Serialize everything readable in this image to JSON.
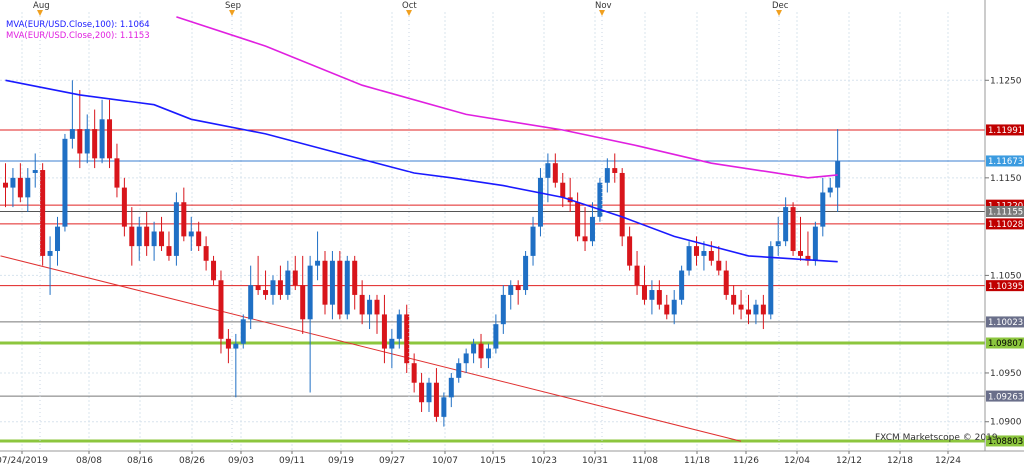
{
  "chart_data": {
    "type": "candlestick",
    "instrument": "EUR/USD",
    "legend": [
      {
        "label": "MVA(EUR/USD.Close,100): 1.1064",
        "color": "#1a1aff"
      },
      {
        "label": "MVA(EUR/USD.Close,200): 1.1153",
        "color": "#e020e0"
      }
    ],
    "credit": "FXCM Marketscope © 2019",
    "ylim": [
      1.087,
      1.132
    ],
    "y_ticks": [
      1.09,
      1.095,
      1.105,
      1.115,
      1.125
    ],
    "x_tick_labels": [
      "07/24/2019",
      "08/08",
      "08/16",
      "08/26",
      "09/03",
      "09/11",
      "09/19",
      "09/27",
      "10/07",
      "10/15",
      "10/23",
      "10/31",
      "11/08",
      "11/18",
      "11/26",
      "12/04",
      "12/12",
      "12/18",
      "12/24"
    ],
    "month_markers": [
      "Aug",
      "Sep",
      "Oct",
      "Nov",
      "Dec"
    ],
    "horizontal_levels": [
      {
        "label": "1.11991",
        "value": 1.11991,
        "color": "#e02020",
        "box": "#c00000",
        "text_color": "#ffffff"
      },
      {
        "label": "1.11673",
        "value": 1.11673,
        "color": "#3b7fd0",
        "box": "#3b9be0",
        "text_color": "#ffffff"
      },
      {
        "label": "1.11220",
        "value": 1.1122,
        "color": "#e02020",
        "box": "#c00000",
        "text_color": "#ffffff"
      },
      {
        "label": "1.11155",
        "value": 1.11155,
        "color": "#555555",
        "box": "#7a7a7a",
        "text_color": "#ffffff"
      },
      {
        "label": "1.11028",
        "value": 1.11028,
        "color": "#e02020",
        "box": "#c00000",
        "text_color": "#ffffff"
      },
      {
        "label": "1.10395",
        "value": 1.10395,
        "color": "#e02020",
        "box": "#c00000",
        "text_color": "#ffffff"
      },
      {
        "label": "1.10023",
        "value": 1.10023,
        "color": "#777777",
        "box": "#6a6f8a",
        "text_color": "#ffffff"
      },
      {
        "label": "1.09807",
        "value": 1.09807,
        "color": "#8cc63e",
        "box": "#8cc63e",
        "text_color": "#000000"
      },
      {
        "label": "1.09263",
        "value": 1.09263,
        "color": "#777777",
        "box": "#6a6f8a",
        "text_color": "#ffffff"
      },
      {
        "label": "1.08803",
        "value": 1.08803,
        "color": "#8cc63e",
        "box": "#8cc63e",
        "text_color": "#000000"
      }
    ],
    "trendline": {
      "from": [
        0,
        1.107
      ],
      "to": [
        99,
        1.088
      ],
      "color": "#e03030"
    },
    "ma100": [
      [
        0,
        1.125
      ],
      [
        10,
        1.1235
      ],
      [
        20,
        1.1225
      ],
      [
        25,
        1.121
      ],
      [
        35,
        1.1195
      ],
      [
        45,
        1.1175
      ],
      [
        55,
        1.1155
      ],
      [
        60,
        1.115
      ],
      [
        67,
        1.1142
      ],
      [
        75,
        1.113
      ],
      [
        83,
        1.111
      ],
      [
        90,
        1.109
      ],
      [
        100,
        1.107
      ],
      [
        108,
        1.1066
      ],
      [
        112,
        1.1064
      ]
    ],
    "ma200": [
      [
        23,
        1.1315
      ],
      [
        35,
        1.1285
      ],
      [
        48,
        1.1245
      ],
      [
        62,
        1.1215
      ],
      [
        75,
        1.1199
      ],
      [
        85,
        1.1183
      ],
      [
        95,
        1.1165
      ],
      [
        108,
        1.115
      ],
      [
        112,
        1.1153
      ]
    ],
    "candles": [
      {
        "o": 1.1145,
        "h": 1.1165,
        "l": 1.112,
        "c": 1.114
      },
      {
        "o": 1.114,
        "h": 1.116,
        "l": 1.112,
        "c": 1.115
      },
      {
        "o": 1.115,
        "h": 1.1165,
        "l": 1.1125,
        "c": 1.113
      },
      {
        "o": 1.113,
        "h": 1.116,
        "l": 1.1115,
        "c": 1.115
      },
      {
        "o": 1.1155,
        "h": 1.1175,
        "l": 1.114,
        "c": 1.1158
      },
      {
        "o": 1.1158,
        "h": 1.1165,
        "l": 1.106,
        "c": 1.107
      },
      {
        "o": 1.107,
        "h": 1.109,
        "l": 1.103,
        "c": 1.1075
      },
      {
        "o": 1.1075,
        "h": 1.111,
        "l": 1.106,
        "c": 1.11
      },
      {
        "o": 1.11,
        "h": 1.1195,
        "l": 1.1095,
        "c": 1.119
      },
      {
        "o": 1.119,
        "h": 1.125,
        "l": 1.118,
        "c": 1.12
      },
      {
        "o": 1.12,
        "h": 1.124,
        "l": 1.116,
        "c": 1.1175
      },
      {
        "o": 1.1175,
        "h": 1.1215,
        "l": 1.1165,
        "c": 1.12
      },
      {
        "o": 1.12,
        "h": 1.122,
        "l": 1.116,
        "c": 1.117
      },
      {
        "o": 1.117,
        "h": 1.123,
        "l": 1.1165,
        "c": 1.121
      },
      {
        "o": 1.121,
        "h": 1.123,
        "l": 1.116,
        "c": 1.117
      },
      {
        "o": 1.117,
        "h": 1.1185,
        "l": 1.113,
        "c": 1.114
      },
      {
        "o": 1.114,
        "h": 1.115,
        "l": 1.109,
        "c": 1.11
      },
      {
        "o": 1.11,
        "h": 1.112,
        "l": 1.106,
        "c": 1.108
      },
      {
        "o": 1.108,
        "h": 1.111,
        "l": 1.1065,
        "c": 1.11
      },
      {
        "o": 1.11,
        "h": 1.1115,
        "l": 1.107,
        "c": 1.108
      },
      {
        "o": 1.108,
        "h": 1.1105,
        "l": 1.1065,
        "c": 1.1095
      },
      {
        "o": 1.1095,
        "h": 1.111,
        "l": 1.1075,
        "c": 1.108
      },
      {
        "o": 1.108,
        "h": 1.1095,
        "l": 1.1065,
        "c": 1.107
      },
      {
        "o": 1.107,
        "h": 1.1135,
        "l": 1.106,
        "c": 1.1125
      },
      {
        "o": 1.1125,
        "h": 1.114,
        "l": 1.1085,
        "c": 1.109
      },
      {
        "o": 1.109,
        "h": 1.111,
        "l": 1.1075,
        "c": 1.1095
      },
      {
        "o": 1.1095,
        "h": 1.1105,
        "l": 1.1075,
        "c": 1.108
      },
      {
        "o": 1.108,
        "h": 1.109,
        "l": 1.1055,
        "c": 1.1065
      },
      {
        "o": 1.1065,
        "h": 1.107,
        "l": 1.104,
        "c": 1.1045
      },
      {
        "o": 1.1045,
        "h": 1.1055,
        "l": 1.097,
        "c": 1.0985
      },
      {
        "o": 1.0985,
        "h": 1.0995,
        "l": 1.096,
        "c": 1.0975
      },
      {
        "o": 1.0975,
        "h": 1.099,
        "l": 1.0925,
        "c": 1.098
      },
      {
        "o": 1.098,
        "h": 1.101,
        "l": 1.0975,
        "c": 1.1005
      },
      {
        "o": 1.1005,
        "h": 1.106,
        "l": 1.0995,
        "c": 1.104
      },
      {
        "o": 1.104,
        "h": 1.107,
        "l": 1.103,
        "c": 1.1035
      },
      {
        "o": 1.1035,
        "h": 1.1055,
        "l": 1.1025,
        "c": 1.103
      },
      {
        "o": 1.103,
        "h": 1.105,
        "l": 1.102,
        "c": 1.1045
      },
      {
        "o": 1.1045,
        "h": 1.106,
        "l": 1.1025,
        "c": 1.103
      },
      {
        "o": 1.103,
        "h": 1.1065,
        "l": 1.1025,
        "c": 1.1055
      },
      {
        "o": 1.1055,
        "h": 1.107,
        "l": 1.1035,
        "c": 1.104
      },
      {
        "o": 1.104,
        "h": 1.107,
        "l": 1.099,
        "c": 1.1005
      },
      {
        "o": 1.1005,
        "h": 1.107,
        "l": 1.093,
        "c": 1.106
      },
      {
        "o": 1.106,
        "h": 1.1095,
        "l": 1.1045,
        "c": 1.1065
      },
      {
        "o": 1.1065,
        "h": 1.1075,
        "l": 1.101,
        "c": 1.102
      },
      {
        "o": 1.102,
        "h": 1.1075,
        "l": 1.1005,
        "c": 1.1065
      },
      {
        "o": 1.1065,
        "h": 1.1075,
        "l": 1.1005,
        "c": 1.101
      },
      {
        "o": 1.101,
        "h": 1.107,
        "l": 1.1005,
        "c": 1.1065
      },
      {
        "o": 1.1065,
        "h": 1.107,
        "l": 1.1015,
        "c": 1.103
      },
      {
        "o": 1.103,
        "h": 1.1045,
        "l": 1.1,
        "c": 1.101
      },
      {
        "o": 1.101,
        "h": 1.103,
        "l": 1.0995,
        "c": 1.1025
      },
      {
        "o": 1.1025,
        "h": 1.103,
        "l": 1.099,
        "c": 1.101
      },
      {
        "o": 1.101,
        "h": 1.103,
        "l": 1.096,
        "c": 1.0975
      },
      {
        "o": 1.0975,
        "h": 1.0995,
        "l": 1.0955,
        "c": 1.0985
      },
      {
        "o": 1.0985,
        "h": 1.1015,
        "l": 1.0975,
        "c": 1.101
      },
      {
        "o": 1.101,
        "h": 1.102,
        "l": 1.095,
        "c": 1.096
      },
      {
        "o": 1.096,
        "h": 1.097,
        "l": 1.093,
        "c": 1.094
      },
      {
        "o": 1.094,
        "h": 1.095,
        "l": 1.091,
        "c": 1.092
      },
      {
        "o": 1.092,
        "h": 1.0945,
        "l": 1.091,
        "c": 1.094
      },
      {
        "o": 1.094,
        "h": 1.0955,
        "l": 1.09,
        "c": 1.0905
      },
      {
        "o": 1.0905,
        "h": 1.093,
        "l": 1.0895,
        "c": 1.0925
      },
      {
        "o": 1.0925,
        "h": 1.095,
        "l": 1.0915,
        "c": 1.0945
      },
      {
        "o": 1.0945,
        "h": 1.0965,
        "l": 1.094,
        "c": 1.096
      },
      {
        "o": 1.096,
        "h": 1.0975,
        "l": 1.095,
        "c": 1.097
      },
      {
        "o": 1.097,
        "h": 1.0985,
        "l": 1.096,
        "c": 1.098
      },
      {
        "o": 1.098,
        "h": 1.099,
        "l": 1.0955,
        "c": 1.0965
      },
      {
        "o": 1.0965,
        "h": 1.098,
        "l": 1.0955,
        "c": 1.0975
      },
      {
        "o": 1.0975,
        "h": 1.101,
        "l": 1.097,
        "c": 1.1
      },
      {
        "o": 1.1,
        "h": 1.104,
        "l": 1.099,
        "c": 1.103
      },
      {
        "o": 1.103,
        "h": 1.1045,
        "l": 1.1015,
        "c": 1.104
      },
      {
        "o": 1.104,
        "h": 1.1045,
        "l": 1.102,
        "c": 1.1035
      },
      {
        "o": 1.1035,
        "h": 1.1075,
        "l": 1.103,
        "c": 1.107
      },
      {
        "o": 1.107,
        "h": 1.111,
        "l": 1.106,
        "c": 1.11
      },
      {
        "o": 1.11,
        "h": 1.116,
        "l": 1.109,
        "c": 1.115
      },
      {
        "o": 1.115,
        "h": 1.1175,
        "l": 1.1125,
        "c": 1.1165
      },
      {
        "o": 1.1165,
        "h": 1.1175,
        "l": 1.114,
        "c": 1.1145
      },
      {
        "o": 1.1145,
        "h": 1.1155,
        "l": 1.112,
        "c": 1.113
      },
      {
        "o": 1.113,
        "h": 1.115,
        "l": 1.1115,
        "c": 1.1125
      },
      {
        "o": 1.1125,
        "h": 1.1135,
        "l": 1.1085,
        "c": 1.109
      },
      {
        "o": 1.109,
        "h": 1.112,
        "l": 1.1075,
        "c": 1.1085
      },
      {
        "o": 1.1085,
        "h": 1.1125,
        "l": 1.108,
        "c": 1.111
      },
      {
        "o": 1.111,
        "h": 1.115,
        "l": 1.1105,
        "c": 1.1145
      },
      {
        "o": 1.1145,
        "h": 1.117,
        "l": 1.1135,
        "c": 1.116
      },
      {
        "o": 1.116,
        "h": 1.1175,
        "l": 1.1145,
        "c": 1.1155
      },
      {
        "o": 1.1155,
        "h": 1.116,
        "l": 1.108,
        "c": 1.109
      },
      {
        "o": 1.109,
        "h": 1.11,
        "l": 1.1055,
        "c": 1.106
      },
      {
        "o": 1.106,
        "h": 1.1075,
        "l": 1.103,
        "c": 1.104
      },
      {
        "o": 1.104,
        "h": 1.106,
        "l": 1.102,
        "c": 1.1025
      },
      {
        "o": 1.1025,
        "h": 1.1045,
        "l": 1.101,
        "c": 1.1035
      },
      {
        "o": 1.1035,
        "h": 1.1045,
        "l": 1.1015,
        "c": 1.102
      },
      {
        "o": 1.102,
        "h": 1.103,
        "l": 1.1005,
        "c": 1.101
      },
      {
        "o": 1.101,
        "h": 1.1035,
        "l": 1.1,
        "c": 1.1025
      },
      {
        "o": 1.1025,
        "h": 1.106,
        "l": 1.102,
        "c": 1.1055
      },
      {
        "o": 1.1055,
        "h": 1.1085,
        "l": 1.105,
        "c": 1.108
      },
      {
        "o": 1.108,
        "h": 1.109,
        "l": 1.106,
        "c": 1.107
      },
      {
        "o": 1.107,
        "h": 1.1085,
        "l": 1.1055,
        "c": 1.1075
      },
      {
        "o": 1.1075,
        "h": 1.1085,
        "l": 1.106,
        "c": 1.1065
      },
      {
        "o": 1.1065,
        "h": 1.108,
        "l": 1.105,
        "c": 1.1055
      },
      {
        "o": 1.1055,
        "h": 1.1065,
        "l": 1.1025,
        "c": 1.103
      },
      {
        "o": 1.103,
        "h": 1.104,
        "l": 1.101,
        "c": 1.102
      },
      {
        "o": 1.102,
        "h": 1.1035,
        "l": 1.1005,
        "c": 1.1015
      },
      {
        "o": 1.1015,
        "h": 1.103,
        "l": 1.1,
        "c": 1.101
      },
      {
        "o": 1.101,
        "h": 1.1025,
        "l": 1.1,
        "c": 1.102
      },
      {
        "o": 1.102,
        "h": 1.103,
        "l": 1.0995,
        "c": 1.101
      },
      {
        "o": 1.101,
        "h": 1.1085,
        "l": 1.1005,
        "c": 1.108
      },
      {
        "o": 1.108,
        "h": 1.111,
        "l": 1.107,
        "c": 1.1085
      },
      {
        "o": 1.1085,
        "h": 1.113,
        "l": 1.108,
        "c": 1.112
      },
      {
        "o": 1.112,
        "h": 1.1125,
        "l": 1.107,
        "c": 1.1075
      },
      {
        "o": 1.1075,
        "h": 1.111,
        "l": 1.1065,
        "c": 1.107
      },
      {
        "o": 1.107,
        "h": 1.1095,
        "l": 1.106,
        "c": 1.1065
      },
      {
        "o": 1.1065,
        "h": 1.1105,
        "l": 1.106,
        "c": 1.11
      },
      {
        "o": 1.11,
        "h": 1.115,
        "l": 1.109,
        "c": 1.1135
      },
      {
        "o": 1.1135,
        "h": 1.115,
        "l": 1.113,
        "c": 1.114
      },
      {
        "o": 1.114,
        "h": 1.12,
        "l": 1.1115,
        "c": 1.1167
      }
    ]
  }
}
